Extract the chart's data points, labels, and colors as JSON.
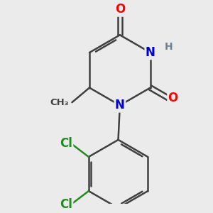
{
  "bg_color": "#ebebeb",
  "bond_color": "#404040",
  "bond_width": 1.8,
  "atom_colors": {
    "O": "#ff0000",
    "N": "#0000cc",
    "H": "#708090",
    "Cl": "#228B22",
    "C": "#404040"
  },
  "font_size_atom": 12,
  "font_size_small": 9.5,
  "font_size_h": 10
}
